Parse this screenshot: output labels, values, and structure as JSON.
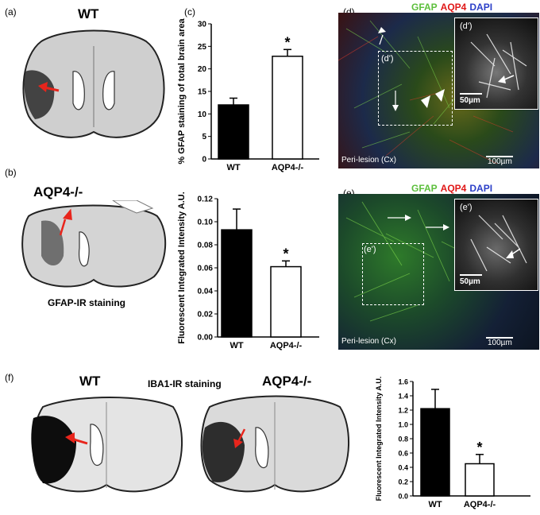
{
  "panels": {
    "a": {
      "letter": "(a)",
      "label": "WT"
    },
    "b": {
      "letter": "(b)",
      "label": "AQP4-/-",
      "caption": "GFAP-IR staining"
    },
    "c": {
      "letter": "(c)"
    },
    "d": {
      "letter": "(d)",
      "title_gfap": "GFAP",
      "title_aqp4": "AQP4",
      "title_dapi": "DAPI",
      "dash": "-",
      "box_label": "(d')",
      "inset_label": "(d')",
      "inset_scale": "50µm",
      "region": "Peri-lesion (Cx)",
      "scale": "100µm"
    },
    "e": {
      "letter": "(e)",
      "title_gfap": "GFAP",
      "title_aqp4": "AQP4",
      "title_dapi": "DAPI",
      "dash": "-",
      "box_label": "(e')",
      "inset_label": "(e')",
      "inset_scale": "50µm",
      "region": "Peri-lesion (Cx)",
      "scale": "100µm"
    },
    "f": {
      "letter": "(f)",
      "label_wt": "WT",
      "label_ko": "AQP4-/-",
      "caption": "IBA1-IR staining"
    }
  },
  "colors": {
    "gfap": "#5cbf3c",
    "aqp4": "#e01818",
    "dapi": "#2b3fc8",
    "arrow": "#e8251c"
  },
  "chart_data": [
    {
      "type": "bar",
      "categories": [
        "WT",
        "AQP4-/-"
      ],
      "values": [
        12.0,
        22.8
      ],
      "errors": [
        1.5,
        1.5
      ],
      "fills": [
        "#000000",
        "#ffffff"
      ],
      "ylabel": "% GFAP staining of total brain area",
      "ylim": [
        0,
        30
      ],
      "yticks": [
        0,
        5,
        10,
        15,
        20,
        25,
        30
      ],
      "significance": [
        "",
        "*"
      ]
    },
    {
      "type": "bar",
      "categories": [
        "WT",
        "AQP4-/-"
      ],
      "values": [
        0.093,
        0.061
      ],
      "errors": [
        0.018,
        0.005
      ],
      "fills": [
        "#000000",
        "#ffffff"
      ],
      "ylabel": "Fluorescent Integrated Intensity A.U.",
      "ylim": [
        0,
        0.12
      ],
      "yticks": [
        "0.00",
        "0.02",
        "0.04",
        "0.06",
        "0.08",
        "0.10",
        "0.12"
      ],
      "significance": [
        "",
        "*"
      ]
    },
    {
      "type": "bar",
      "categories": [
        "WT",
        "AQP4-/-"
      ],
      "values": [
        1.22,
        0.45
      ],
      "errors": [
        0.27,
        0.13
      ],
      "fills": [
        "#000000",
        "#ffffff"
      ],
      "ylabel": "Fluorescent Integrated Intensity A.U.",
      "ylim": [
        0,
        1.6
      ],
      "yticks": [
        "0.0",
        "0.2",
        "0.4",
        "0.6",
        "0.8",
        "1.0",
        "1.2",
        "1.4",
        "1.6"
      ],
      "significance": [
        "",
        "*"
      ]
    }
  ]
}
